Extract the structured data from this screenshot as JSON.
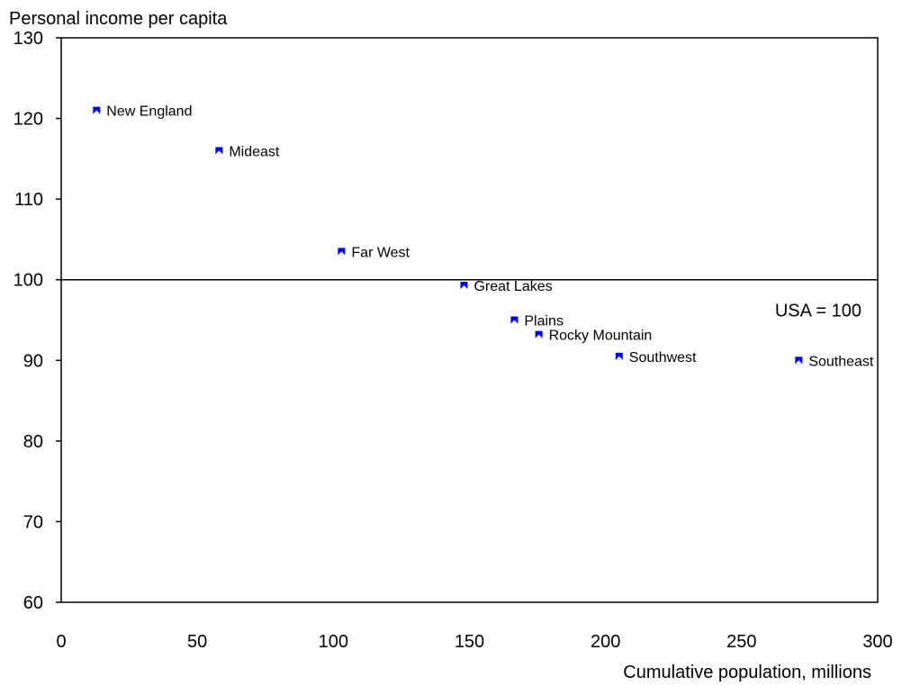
{
  "chart_data": {
    "type": "scatter",
    "title": "",
    "ylabel": "Personal income per capita",
    "xlabel": "Cumulative population, millions",
    "xlim": [
      0,
      300
    ],
    "ylim": [
      60,
      130
    ],
    "xticks": [
      0,
      50,
      100,
      150,
      200,
      250,
      300
    ],
    "yticks": [
      60,
      70,
      80,
      90,
      100,
      110,
      120,
      130
    ],
    "grid": false,
    "marker_color": "#0000ff",
    "reference_line": {
      "y": 100,
      "label": "USA = 100"
    },
    "points": [
      {
        "label": "New England",
        "x": 13,
        "y": 121
      },
      {
        "label": "Mideast",
        "x": 58,
        "y": 116
      },
      {
        "label": "Far West",
        "x": 103,
        "y": 103.5
      },
      {
        "label": "Great Lakes",
        "x": 148,
        "y": 99.3
      },
      {
        "label": "Plains",
        "x": 166.5,
        "y": 95
      },
      {
        "label": "Rocky Mountain",
        "x": 175.5,
        "y": 93.2
      },
      {
        "label": "Southwest",
        "x": 205,
        "y": 90.5
      },
      {
        "label": "Southeast",
        "x": 271,
        "y": 90
      }
    ]
  }
}
